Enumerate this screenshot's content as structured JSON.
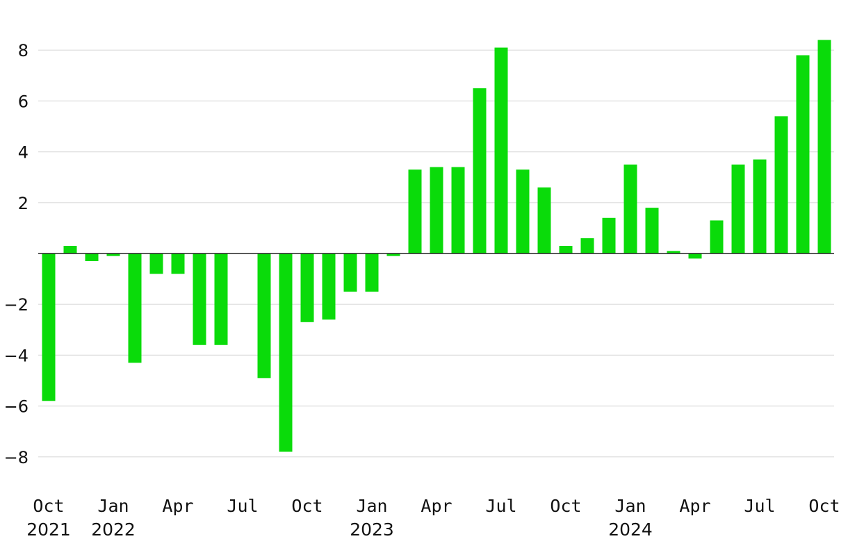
{
  "chart_data": {
    "type": "bar",
    "title": "",
    "xlabel": "",
    "ylabel": "",
    "ylim": [
      -9,
      9
    ],
    "yticks": [
      -8,
      -6,
      -4,
      -2,
      2,
      4,
      6,
      8
    ],
    "ytick_labels": [
      "−8",
      "−6",
      "−4",
      "−2",
      "2",
      "4",
      "6",
      "8"
    ],
    "grid": true,
    "bar_color": "#0adb0a",
    "categories": [
      "2021-10",
      "2021-11",
      "2021-12",
      "2022-01",
      "2022-02",
      "2022-03",
      "2022-04",
      "2022-05",
      "2022-06",
      "2022-07",
      "2022-08",
      "2022-09",
      "2022-10",
      "2022-11",
      "2022-12",
      "2023-01",
      "2023-02",
      "2023-03",
      "2023-04",
      "2023-05",
      "2023-06",
      "2023-07",
      "2023-08",
      "2023-09",
      "2023-10",
      "2023-11",
      "2023-12",
      "2024-01",
      "2024-02",
      "2024-03",
      "2024-04",
      "2024-05",
      "2024-06",
      "2024-07",
      "2024-08",
      "2024-09",
      "2024-10"
    ],
    "values": [
      -5.8,
      0.3,
      -0.3,
      -0.1,
      -4.3,
      -0.8,
      -0.8,
      -3.6,
      -3.6,
      null,
      -4.9,
      -7.8,
      -2.7,
      -2.6,
      -1.5,
      -1.5,
      -0.1,
      3.3,
      3.4,
      3.4,
      6.5,
      8.1,
      3.3,
      2.6,
      0.3,
      0.6,
      1.4,
      3.5,
      1.8,
      0.1,
      -0.2,
      1.3,
      3.5,
      3.7,
      5.4,
      7.8,
      8.4
    ],
    "x_tick_labels": [
      {
        "index": 0,
        "label": "Oct",
        "year": "2021"
      },
      {
        "index": 3,
        "label": "Jan",
        "year": "2022"
      },
      {
        "index": 6,
        "label": "Apr",
        "year": ""
      },
      {
        "index": 9,
        "label": "Jul",
        "year": ""
      },
      {
        "index": 12,
        "label": "Oct",
        "year": ""
      },
      {
        "index": 15,
        "label": "Jan",
        "year": "2023"
      },
      {
        "index": 18,
        "label": "Apr",
        "year": ""
      },
      {
        "index": 21,
        "label": "Jul",
        "year": ""
      },
      {
        "index": 24,
        "label": "Oct",
        "year": ""
      },
      {
        "index": 27,
        "label": "Jan",
        "year": "2024"
      },
      {
        "index": 30,
        "label": "Apr",
        "year": ""
      },
      {
        "index": 33,
        "label": "Jul",
        "year": ""
      },
      {
        "index": 36,
        "label": "Oct",
        "year": ""
      }
    ]
  }
}
